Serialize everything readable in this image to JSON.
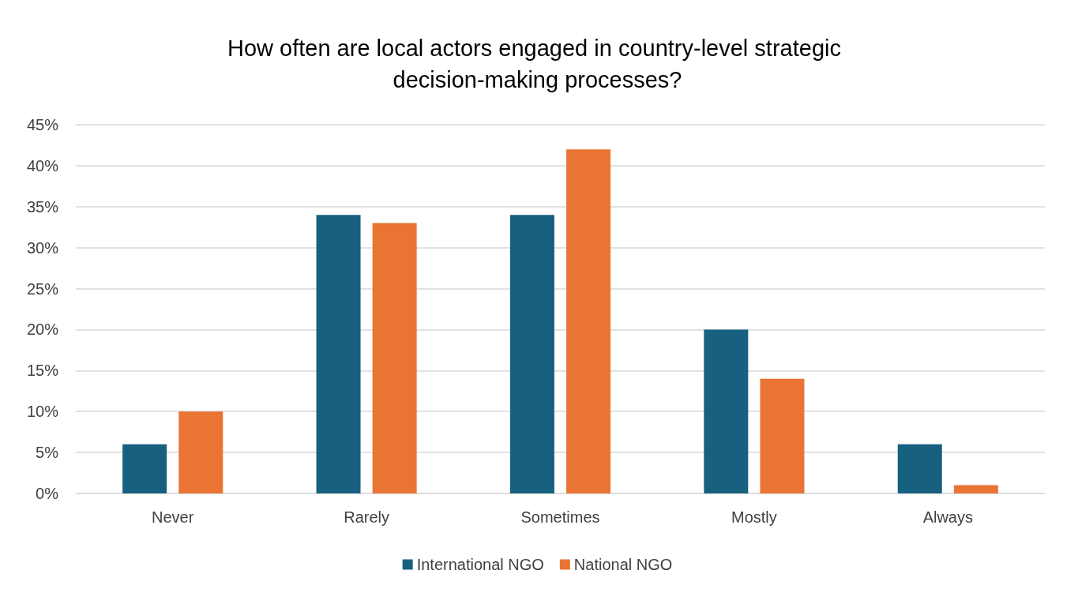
{
  "chart_data": {
    "type": "bar",
    "title": "How often are local actors engaged in country-level strategic decision-making processes?",
    "categories": [
      "Never",
      "Rarely",
      "Sometimes",
      "Mostly",
      "Always"
    ],
    "series": [
      {
        "name": "International NGO",
        "color": "#17607f",
        "values": [
          6,
          34,
          34,
          20,
          6
        ]
      },
      {
        "name": "National NGO",
        "color": "#ea7434",
        "values": [
          10,
          33,
          42,
          14,
          1
        ]
      }
    ],
    "ylim": [
      0,
      45
    ],
    "yticks": [
      {
        "value": 0,
        "label": "0%"
      },
      {
        "value": 5,
        "label": "5%"
      },
      {
        "value": 10,
        "label": "10%"
      },
      {
        "value": 15,
        "label": "15%"
      },
      {
        "value": 20,
        "label": "20%"
      },
      {
        "value": 25,
        "label": "25%"
      },
      {
        "value": 30,
        "label": "30%"
      },
      {
        "value": 35,
        "label": "35%"
      },
      {
        "value": 40,
        "label": "40%"
      },
      {
        "value": 45,
        "label": "45%"
      }
    ],
    "grid": "y",
    "legend": "bottom"
  }
}
